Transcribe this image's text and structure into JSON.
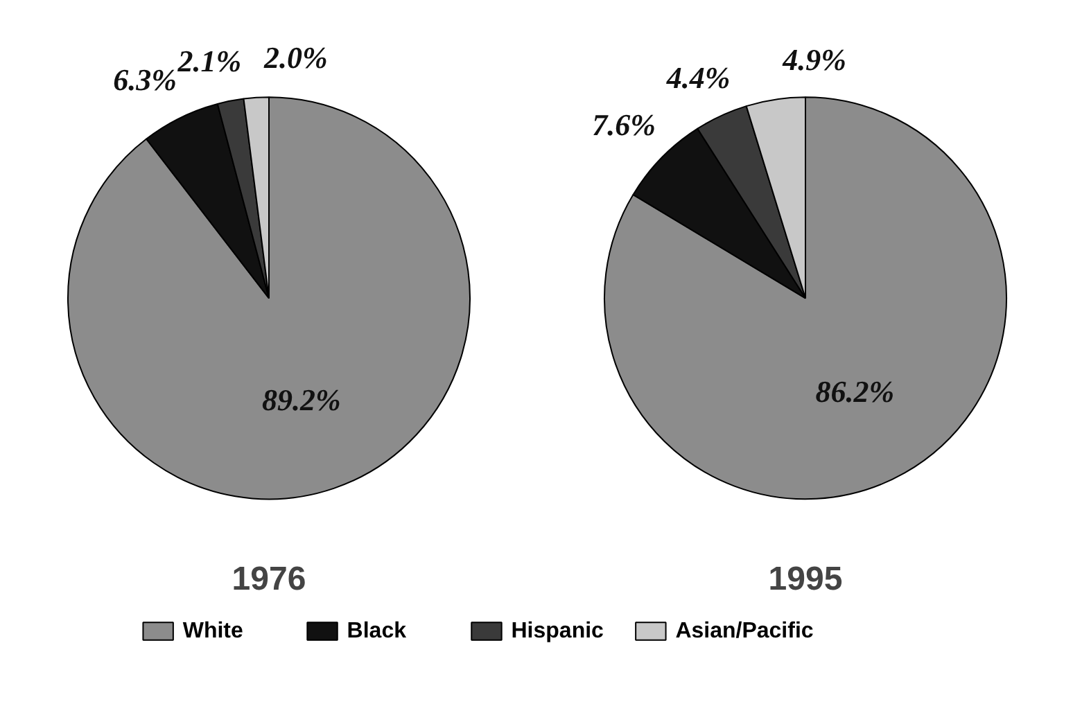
{
  "chart_data": [
    {
      "type": "pie",
      "title": "1976",
      "categories": [
        "White",
        "Black",
        "Hispanic",
        "Asian/Pacific"
      ],
      "values": [
        89.2,
        6.3,
        2.1,
        2.0
      ],
      "value_labels": [
        "89.2%",
        "6.3%",
        "2.1%",
        "2.0%"
      ],
      "colors": [
        "#8c8c8c",
        "#111111",
        "#3a3a3a",
        "#c8c8c8"
      ],
      "legend": "bottom"
    },
    {
      "type": "pie",
      "title": "1995",
      "categories": [
        null,
        null,
        null,
        null
      ],
      "values": [
        86.2,
        7.6,
        4.4,
        4.9
      ],
      "value_labels": [
        "86.2%",
        "7.6%",
        "4.4%",
        "4.9%"
      ],
      "colors": [
        "#8c8c8c",
        "#111111",
        "#3a3a3a",
        "#c8c8c8"
      ]
    }
  ]
}
